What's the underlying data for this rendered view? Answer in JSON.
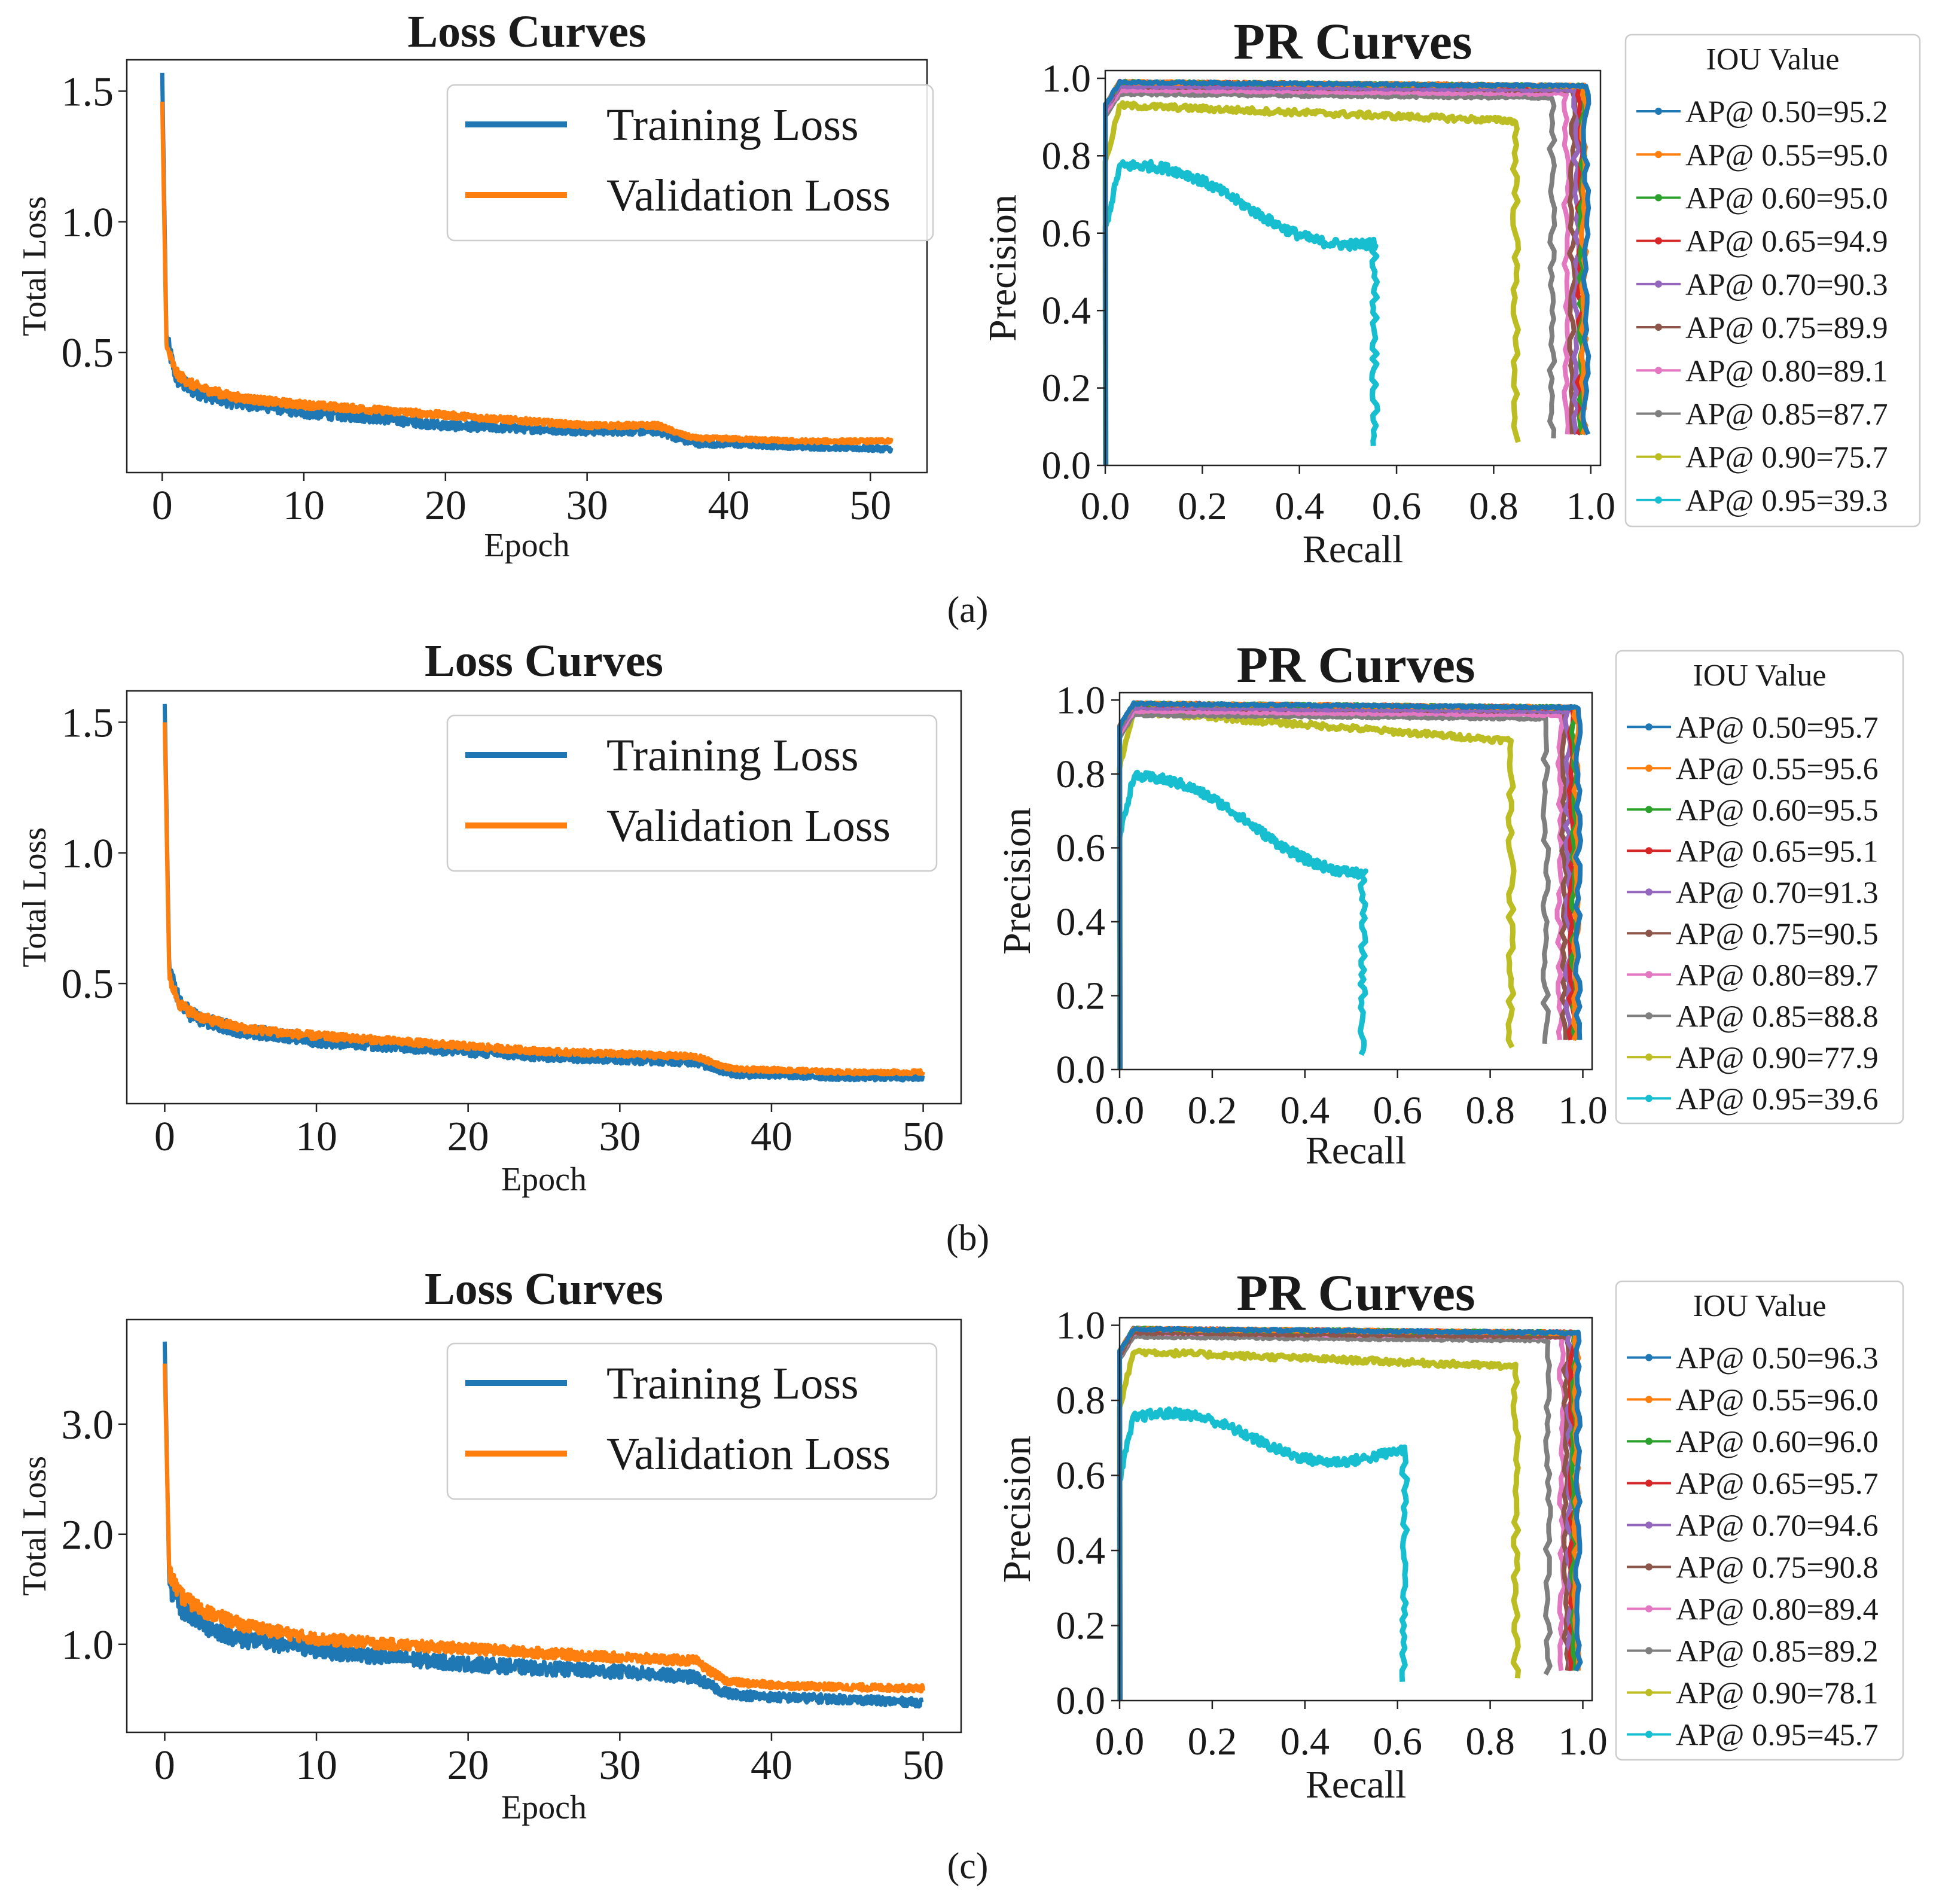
{
  "colors": {
    "training": "#1f77b4",
    "validation": "#ff7f0e",
    "pr": [
      "#1f77b4",
      "#ff7f0e",
      "#2ca02c",
      "#d62728",
      "#9467bd",
      "#8c564b",
      "#e377c2",
      "#7f7f7f",
      "#bcbd22",
      "#17becf"
    ]
  },
  "chart_data": [
    {
      "type": "line",
      "panel": "(a)",
      "chart": "loss",
      "title": "Loss Curves",
      "xlabel": "Epoch",
      "ylabel": "Total Loss",
      "xlim": [
        -2.5,
        54
      ],
      "ylim": [
        0.04,
        1.62
      ],
      "xticks": [
        0,
        10,
        20,
        30,
        40,
        50
      ],
      "yticks": [
        0.5,
        1.0,
        1.5
      ],
      "legend": [
        "Training Loss",
        "Validation Loss"
      ],
      "series": [
        {
          "name": "Training Loss",
          "peak": 1.57,
          "end": 0.13,
          "x": [
            0,
            0.3,
            1,
            2,
            3,
            5,
            8,
            10,
            15,
            20,
            25,
            30,
            35,
            36,
            37,
            38,
            40,
            45,
            51.5
          ],
          "y": [
            1.57,
            0.55,
            0.4,
            0.36,
            0.34,
            0.31,
            0.29,
            0.27,
            0.25,
            0.22,
            0.21,
            0.2,
            0.2,
            0.18,
            0.16,
            0.15,
            0.15,
            0.14,
            0.13
          ]
        },
        {
          "name": "Validation Loss",
          "peak": 1.46,
          "end": 0.16,
          "x": [
            0,
            0.3,
            1,
            2,
            3,
            5,
            8,
            10,
            15,
            20,
            25,
            30,
            35,
            36,
            37,
            38,
            40,
            45,
            51.5
          ],
          "y": [
            1.46,
            0.52,
            0.42,
            0.38,
            0.36,
            0.33,
            0.31,
            0.3,
            0.28,
            0.26,
            0.24,
            0.22,
            0.22,
            0.2,
            0.18,
            0.17,
            0.17,
            0.16,
            0.16
          ]
        }
      ]
    },
    {
      "type": "line",
      "panel": "(a)",
      "chart": "pr",
      "title": "PR Curves",
      "xlabel": "Recall",
      "ylabel": "Precision",
      "xlim": [
        0,
        1.02
      ],
      "ylim": [
        0,
        1.02
      ],
      "xticks": [
        0.0,
        0.2,
        0.4,
        0.6,
        0.8,
        1.0
      ],
      "yticks": [
        0.0,
        0.2,
        0.4,
        0.6,
        0.8,
        1.0
      ],
      "legend_title": "IOU Value",
      "series": [
        {
          "name": "AP@ 0.50=95.2",
          "recall_end": 0.99,
          "precision": [
            0.99,
            0.98
          ],
          "drop_to": 0.08
        },
        {
          "name": "AP@ 0.55=95.0",
          "recall_end": 0.986,
          "precision": [
            0.99,
            0.98
          ],
          "drop_to": 0.08
        },
        {
          "name": "AP@ 0.60=95.0",
          "recall_end": 0.982,
          "precision": [
            0.99,
            0.98
          ],
          "drop_to": 0.08
        },
        {
          "name": "AP@ 0.65=94.9",
          "recall_end": 0.978,
          "precision": [
            0.99,
            0.98
          ],
          "drop_to": 0.08
        },
        {
          "name": "AP@ 0.70=90.3",
          "recall_end": 0.97,
          "precision": [
            0.98,
            0.97
          ],
          "drop_to": 0.08
        },
        {
          "name": "AP@ 0.75=89.9",
          "recall_end": 0.962,
          "precision": [
            0.98,
            0.97
          ],
          "drop_to": 0.08
        },
        {
          "name": "AP@ 0.80=89.1",
          "recall_end": 0.95,
          "precision": [
            0.97,
            0.96
          ],
          "drop_to": 0.08
        },
        {
          "name": "AP@ 0.85=87.7",
          "recall_end": 0.92,
          "precision": [
            0.96,
            0.95
          ],
          "drop_to": 0.07
        },
        {
          "name": "AP@ 0.90=75.7",
          "recall_end": 0.845,
          "precision": [
            0.93,
            0.89
          ],
          "drop_to": 0.06
        },
        {
          "name": "AP@ 0.95=39.3",
          "recall_end": 0.555,
          "precision": [
            0.76,
            0.58
          ],
          "drop_to": 0.05
        }
      ]
    },
    {
      "type": "line",
      "panel": "(b)",
      "chart": "loss",
      "title": "Loss Curves",
      "xlabel": "Epoch",
      "ylabel": "Total Loss",
      "xlim": [
        -2.5,
        52.5
      ],
      "ylim": [
        0.04,
        1.62
      ],
      "xticks": [
        0,
        10,
        20,
        30,
        40,
        50
      ],
      "yticks": [
        0.5,
        1.0,
        1.5
      ],
      "legend": [
        "Training Loss",
        "Validation Loss"
      ],
      "series": [
        {
          "name": "Training Loss",
          "peak": 1.57,
          "end": 0.14,
          "x": [
            0,
            0.3,
            1,
            2,
            3,
            5,
            8,
            10,
            15,
            20,
            25,
            30,
            35,
            36,
            37,
            38,
            40,
            45,
            50
          ],
          "y": [
            1.57,
            0.55,
            0.42,
            0.37,
            0.35,
            0.32,
            0.3,
            0.28,
            0.26,
            0.24,
            0.22,
            0.21,
            0.2,
            0.18,
            0.16,
            0.15,
            0.15,
            0.14,
            0.14
          ]
        },
        {
          "name": "Validation Loss",
          "peak": 1.5,
          "end": 0.16,
          "x": [
            0,
            0.3,
            1,
            2,
            3,
            5,
            8,
            10,
            15,
            20,
            25,
            30,
            35,
            36,
            37,
            38,
            40,
            45,
            50
          ],
          "y": [
            1.5,
            0.52,
            0.42,
            0.38,
            0.36,
            0.33,
            0.31,
            0.3,
            0.28,
            0.26,
            0.24,
            0.23,
            0.22,
            0.2,
            0.18,
            0.17,
            0.17,
            0.16,
            0.16
          ]
        }
      ]
    },
    {
      "type": "line",
      "panel": "(b)",
      "chart": "pr",
      "title": "PR Curves",
      "xlabel": "Recall",
      "ylabel": "Precision",
      "xlim": [
        0,
        1.02
      ],
      "ylim": [
        0,
        1.02
      ],
      "xticks": [
        0.0,
        0.2,
        0.4,
        0.6,
        0.8,
        1.0
      ],
      "yticks": [
        0.0,
        0.2,
        0.4,
        0.6,
        0.8,
        1.0
      ],
      "legend_title": "IOU Value",
      "series": [
        {
          "name": "AP@ 0.50=95.7",
          "recall_end": 0.99,
          "precision": [
            0.99,
            0.98
          ],
          "drop_to": 0.08
        },
        {
          "name": "AP@ 0.55=95.6",
          "recall_end": 0.986,
          "precision": [
            0.99,
            0.98
          ],
          "drop_to": 0.08
        },
        {
          "name": "AP@ 0.60=95.5",
          "recall_end": 0.982,
          "precision": [
            0.99,
            0.98
          ],
          "drop_to": 0.08
        },
        {
          "name": "AP@ 0.65=95.1",
          "recall_end": 0.976,
          "precision": [
            0.99,
            0.98
          ],
          "drop_to": 0.08
        },
        {
          "name": "AP@ 0.70=91.3",
          "recall_end": 0.968,
          "precision": [
            0.98,
            0.97
          ],
          "drop_to": 0.08
        },
        {
          "name": "AP@ 0.75=90.5",
          "recall_end": 0.96,
          "precision": [
            0.98,
            0.97
          ],
          "drop_to": 0.08
        },
        {
          "name": "AP@ 0.80=89.7",
          "recall_end": 0.95,
          "precision": [
            0.97,
            0.96
          ],
          "drop_to": 0.08
        },
        {
          "name": "AP@ 0.85=88.8",
          "recall_end": 0.92,
          "precision": [
            0.96,
            0.95
          ],
          "drop_to": 0.07
        },
        {
          "name": "AP@ 0.90=77.9",
          "recall_end": 0.845,
          "precision": [
            0.97,
            0.89
          ],
          "drop_to": 0.06
        },
        {
          "name": "AP@ 0.95=39.6",
          "recall_end": 0.525,
          "precision": [
            0.78,
            0.55
          ],
          "drop_to": 0.04
        }
      ]
    },
    {
      "type": "line",
      "panel": "(c)",
      "chart": "loss",
      "title": "Loss Curves",
      "xlabel": "Epoch",
      "ylabel": "Total Loss",
      "xlim": [
        -2.5,
        52.5
      ],
      "ylim": [
        0.2,
        3.95
      ],
      "xticks": [
        0,
        10,
        20,
        30,
        40,
        50
      ],
      "yticks": [
        1.0,
        2.0,
        3.0
      ],
      "legend": [
        "Training Loss",
        "Validation Loss"
      ],
      "series": [
        {
          "name": "Training Loss",
          "peak": 3.75,
          "end": 0.47,
          "x": [
            0,
            0.3,
            1,
            2,
            3,
            5,
            8,
            10,
            15,
            20,
            25,
            30,
            35,
            36,
            37,
            38,
            40,
            45,
            50
          ],
          "y": [
            3.75,
            1.55,
            1.35,
            1.25,
            1.15,
            1.05,
            1.0,
            0.95,
            0.88,
            0.82,
            0.78,
            0.75,
            0.7,
            0.62,
            0.56,
            0.54,
            0.52,
            0.5,
            0.47
          ]
        },
        {
          "name": "Validation Loss",
          "peak": 3.55,
          "end": 0.6,
          "x": [
            0,
            0.3,
            1,
            2,
            3,
            5,
            8,
            10,
            15,
            20,
            25,
            30,
            35,
            36,
            37,
            38,
            40,
            45,
            50
          ],
          "y": [
            3.55,
            1.65,
            1.45,
            1.35,
            1.28,
            1.18,
            1.1,
            1.05,
            1.0,
            0.96,
            0.92,
            0.88,
            0.85,
            0.75,
            0.67,
            0.65,
            0.63,
            0.61,
            0.6
          ]
        }
      ]
    },
    {
      "type": "line",
      "panel": "(c)",
      "chart": "pr",
      "title": "PR Curves",
      "xlabel": "Recall",
      "ylabel": "Precision",
      "xlim": [
        0,
        1.02
      ],
      "ylim": [
        0,
        1.02
      ],
      "xticks": [
        0.0,
        0.2,
        0.4,
        0.6,
        0.8,
        1.0
      ],
      "yticks": [
        0.0,
        0.2,
        0.4,
        0.6,
        0.8,
        1.0
      ],
      "legend_title": "IOU Value",
      "series": [
        {
          "name": "AP@ 0.50=96.3",
          "recall_end": 0.99,
          "precision": [
            0.99,
            0.98
          ],
          "drop_to": 0.08
        },
        {
          "name": "AP@ 0.55=96.0",
          "recall_end": 0.986,
          "precision": [
            0.99,
            0.98
          ],
          "drop_to": 0.08
        },
        {
          "name": "AP@ 0.60=96.0",
          "recall_end": 0.982,
          "precision": [
            0.99,
            0.98
          ],
          "drop_to": 0.08
        },
        {
          "name": "AP@ 0.65=95.7",
          "recall_end": 0.978,
          "precision": [
            0.99,
            0.98
          ],
          "drop_to": 0.08
        },
        {
          "name": "AP@ 0.70=94.6",
          "recall_end": 0.972,
          "precision": [
            0.99,
            0.98
          ],
          "drop_to": 0.08
        },
        {
          "name": "AP@ 0.75=90.8",
          "recall_end": 0.964,
          "precision": [
            0.98,
            0.97
          ],
          "drop_to": 0.08
        },
        {
          "name": "AP@ 0.80=89.4",
          "recall_end": 0.955,
          "precision": [
            0.98,
            0.97
          ],
          "drop_to": 0.08
        },
        {
          "name": "AP@ 0.85=89.2",
          "recall_end": 0.925,
          "precision": [
            0.97,
            0.96
          ],
          "drop_to": 0.07
        },
        {
          "name": "AP@ 0.90=78.1",
          "recall_end": 0.855,
          "precision": [
            0.93,
            0.89
          ],
          "drop_to": 0.06
        },
        {
          "name": "AP@ 0.95=45.7",
          "recall_end": 0.615,
          "precision": [
            0.74,
            0.65
          ],
          "drop_to": 0.05
        }
      ]
    }
  ],
  "captions": [
    "(a)",
    "(b)",
    "(c)"
  ]
}
